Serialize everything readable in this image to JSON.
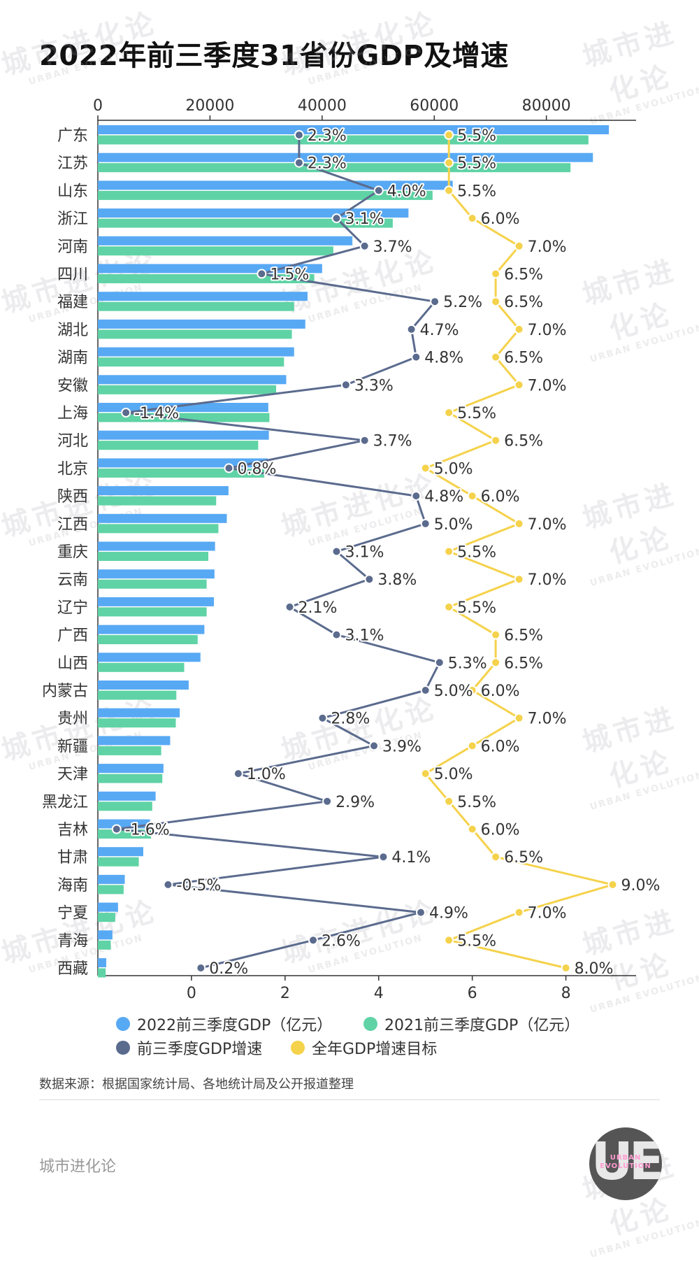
{
  "title": "2022年前三季度31省份GDP及增速",
  "legend": [
    {
      "label": "2022前三季度GDP（亿元）",
      "color": "#58a9f4"
    },
    {
      "label": "2021前三季度GDP（亿元）",
      "color": "#5fd3a5"
    },
    {
      "label": "前三季度GDP增速",
      "color": "#5b6b8e"
    },
    {
      "label": "全年GDP增速目标",
      "color": "#f5d24b"
    }
  ],
  "source": "数据来源：根据国家统计局、各地统计局及公开报道整理",
  "brand": "城市进化论",
  "watermark": {
    "cn": "城市进化论",
    "en": "URBAN EVOLUTION"
  },
  "logo": {
    "glyph": "UE",
    "text": "URBAN EVOLUTION"
  },
  "chart_data": {
    "type": "bar+line",
    "categories": [
      "广东",
      "江苏",
      "山东",
      "浙江",
      "河南",
      "四川",
      "福建",
      "湖北",
      "湖南",
      "安徽",
      "上海",
      "河北",
      "北京",
      "陕西",
      "江西",
      "重庆",
      "云南",
      "辽宁",
      "广西",
      "山西",
      "内蒙古",
      "贵州",
      "新疆",
      "天津",
      "黑龙江",
      "吉林",
      "甘肃",
      "海南",
      "宁夏",
      "青海",
      "西藏"
    ],
    "top_axis": {
      "ticks": [
        0,
        20000,
        40000,
        60000,
        80000
      ],
      "range": [
        0,
        96000
      ]
    },
    "bottom_axis": {
      "ticks": [
        0,
        2,
        4,
        6,
        8
      ],
      "range": [
        -2,
        9.5
      ]
    },
    "series": [
      {
        "name": "2022前三季度GDP（亿元）",
        "axis": "top",
        "color": "#58a9f4",
        "values": [
          91150,
          88300,
          63300,
          55400,
          45400,
          40000,
          37400,
          37000,
          35000,
          33600,
          30400,
          30500,
          30300,
          23300,
          23000,
          20900,
          20800,
          20700,
          19000,
          18300,
          16200,
          14600,
          12900,
          11700,
          10300,
          9300,
          8100,
          4800,
          3600,
          2600,
          1500
        ]
      },
      {
        "name": "2021前三季度GDP（亿元）",
        "axis": "top",
        "color": "#5fd3a5",
        "values": [
          87500,
          84300,
          59700,
          52600,
          42000,
          38600,
          35000,
          34600,
          33200,
          31800,
          30600,
          28600,
          29700,
          21100,
          21500,
          19700,
          19400,
          19400,
          17800,
          15400,
          14000,
          13900,
          11300,
          11500,
          9700,
          9500,
          7300,
          4600,
          3100,
          2300,
          1400
        ]
      },
      {
        "name": "前三季度GDP增速",
        "axis": "bottom",
        "color": "#5b6b8e",
        "values": [
          2.3,
          2.3,
          4.0,
          3.1,
          3.7,
          1.5,
          5.2,
          4.7,
          4.8,
          3.3,
          -1.4,
          3.7,
          0.8,
          4.8,
          5.0,
          3.1,
          3.8,
          2.1,
          3.1,
          5.3,
          5.0,
          2.8,
          3.9,
          1.0,
          2.9,
          -1.6,
          4.1,
          -0.5,
          4.9,
          2.6,
          0.2
        ],
        "labels": [
          "2.3%",
          "2.3%",
          "4.0%",
          "3.1%",
          "3.7%",
          "1.5%",
          "5.2%",
          "4.7%",
          "4.8%",
          "3.3%",
          "-1.4%",
          "3.7%",
          "0.8%",
          "4.8%",
          "5.0%",
          "3.1%",
          "3.8%",
          "2.1%",
          "3.1%",
          "5.3%",
          "5.0%",
          "2.8%",
          "3.9%",
          "1.0%",
          "2.9%",
          "-1.6%",
          "4.1%",
          "-0.5%",
          "4.9%",
          "2.6%",
          "0.2%"
        ]
      },
      {
        "name": "全年GDP增速目标",
        "axis": "bottom",
        "color": "#f5d24b",
        "values": [
          5.5,
          5.5,
          5.5,
          6.0,
          7.0,
          6.5,
          6.5,
          7.0,
          6.5,
          7.0,
          5.5,
          6.5,
          5.0,
          6.0,
          7.0,
          5.5,
          7.0,
          5.5,
          6.5,
          6.5,
          6.0,
          7.0,
          6.0,
          5.0,
          5.5,
          6.0,
          6.5,
          9.0,
          7.0,
          5.5,
          8.0
        ],
        "labels": [
          "5.5%",
          "5.5%",
          "5.5%",
          "6.0%",
          "7.0%",
          "6.5%",
          "6.5%",
          "7.0%",
          "6.5%",
          "7.0%",
          "5.5%",
          "6.5%",
          "5.0%",
          "6.0%",
          "7.0%",
          "5.5%",
          "7.0%",
          "5.5%",
          "6.5%",
          "6.5%",
          "6.0%",
          "7.0%",
          "6.0%",
          "5.0%",
          "5.5%",
          "6.0%",
          "6.5%",
          "9.0%",
          "7.0%",
          "5.5%",
          "8.0%"
        ]
      }
    ]
  }
}
